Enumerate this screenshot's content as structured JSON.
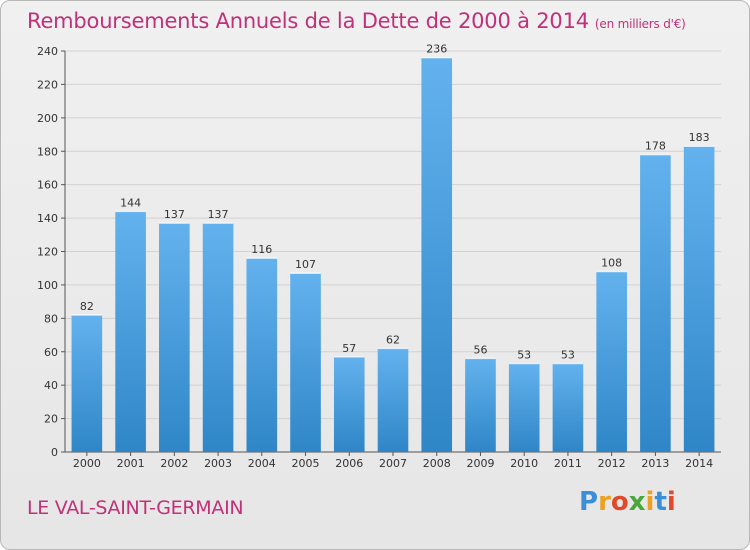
{
  "header": {
    "title": "Remboursements Annuels de la Dette de 2000 à 2014",
    "subtitle": "(en milliers d'€)"
  },
  "footer": {
    "commune": "LE VAL-SAINT-GERMAIN",
    "logo": "Proxiti"
  },
  "colors": {
    "title": "#c0317a",
    "bar_top": "#63b2ee",
    "bar_bottom": "#2f86c7",
    "grid": "#d2d2d2",
    "axis": "#555555",
    "logo": [
      "#3a8fd8",
      "#f0a020",
      "#e04a2a",
      "#4aa83a",
      "#f0a020",
      "#3a8fd8",
      "#e04a2a"
    ]
  },
  "chart_data": {
    "type": "bar",
    "title": "Remboursements Annuels de la Dette de 2000 à 2014",
    "subtitle": "(en milliers d'€)",
    "xlabel": "",
    "ylabel": "",
    "categories": [
      "2000",
      "2001",
      "2002",
      "2003",
      "2004",
      "2005",
      "2006",
      "2007",
      "2008",
      "2009",
      "2010",
      "2011",
      "2012",
      "2013",
      "2014"
    ],
    "values": [
      82,
      144,
      137,
      137,
      116,
      107,
      57,
      62,
      236,
      56,
      53,
      53,
      108,
      178,
      183
    ],
    "ylim": [
      0,
      240
    ],
    "yticks": [
      "0",
      "20",
      "40",
      "60",
      "80",
      "100",
      "120",
      "140",
      "160",
      "180",
      "200",
      "220",
      "240"
    ],
    "grid": true,
    "legend": "none"
  }
}
